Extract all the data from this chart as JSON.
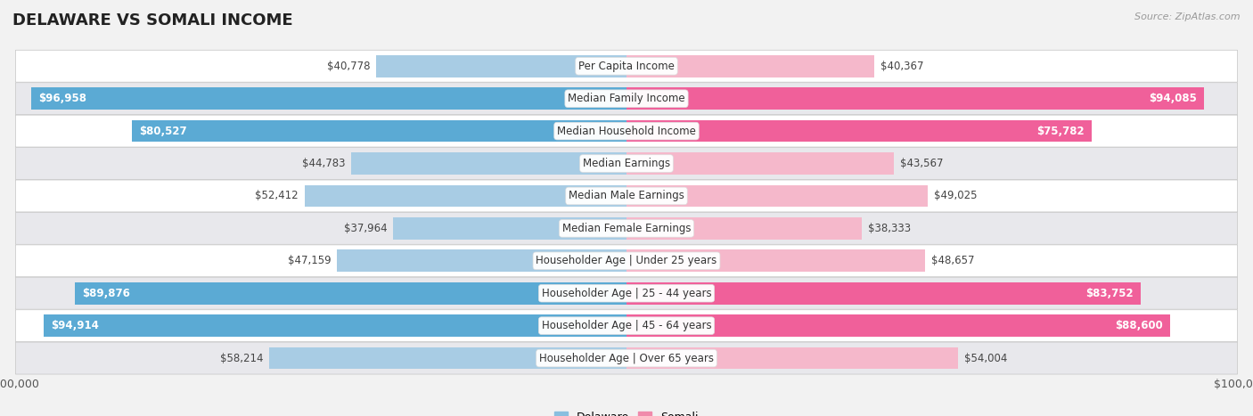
{
  "title": "DELAWARE VS SOMALI INCOME",
  "source": "Source: ZipAtlas.com",
  "categories": [
    "Per Capita Income",
    "Median Family Income",
    "Median Household Income",
    "Median Earnings",
    "Median Male Earnings",
    "Median Female Earnings",
    "Householder Age | Under 25 years",
    "Householder Age | 25 - 44 years",
    "Householder Age | 45 - 64 years",
    "Householder Age | Over 65 years"
  ],
  "delaware_values": [
    40778,
    96958,
    80527,
    44783,
    52412,
    37964,
    47159,
    89876,
    94914,
    58214
  ],
  "somali_values": [
    40367,
    94085,
    75782,
    43567,
    49025,
    38333,
    48657,
    83752,
    88600,
    54004
  ],
  "delaware_labels": [
    "$40,778",
    "$96,958",
    "$80,527",
    "$44,783",
    "$52,412",
    "$37,964",
    "$47,159",
    "$89,876",
    "$94,914",
    "$58,214"
  ],
  "somali_labels": [
    "$40,367",
    "$94,085",
    "$75,782",
    "$43,567",
    "$49,025",
    "$38,333",
    "$48,657",
    "$83,752",
    "$88,600",
    "$54,004"
  ],
  "max_value": 100000,
  "delaware_color_low": "#a8cce4",
  "delaware_color_high": "#5baad4",
  "somali_color_low": "#f5b8cb",
  "somali_color_high": "#f0609a",
  "delaware_legend_color": "#89bfdf",
  "somali_legend_color": "#f08aab",
  "bg_color": "#f2f2f2",
  "row_bg_light": "#ffffff",
  "row_bg_dark": "#e8e8ec",
  "threshold_inside": 60000,
  "title_fontsize": 13,
  "label_fontsize": 8.5,
  "category_fontsize": 8.5,
  "source_fontsize": 8
}
